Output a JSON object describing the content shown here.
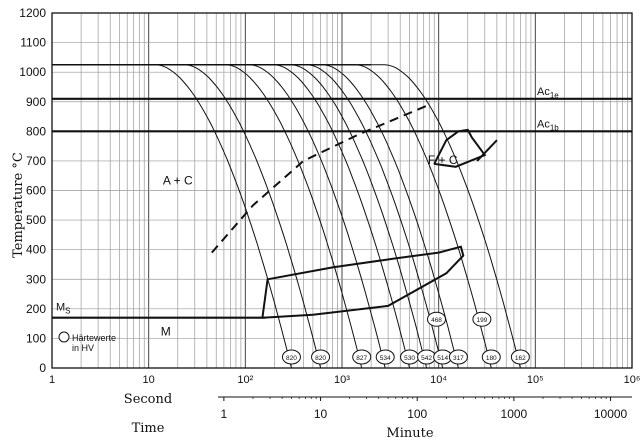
{
  "chart_data": {
    "type": "line",
    "title": "",
    "ylabel": "Temperature °C",
    "xlabel_seconds": "Second",
    "xlabel_minutes": "Minute",
    "time_label": "Time",
    "x_scale": "log",
    "x_seconds_range": [
      1,
      1000000
    ],
    "ylim": [
      0,
      1200
    ],
    "y_ticks": [
      "0",
      "100",
      "200",
      "300",
      "400",
      "500",
      "600",
      "700",
      "800",
      "900",
      "1000",
      "1100",
      "1200"
    ],
    "x_second_ticks": [
      {
        "value": 1,
        "label": "1"
      },
      {
        "value": 10,
        "label": "10"
      },
      {
        "value": 100,
        "label": "10²"
      },
      {
        "value": 1000,
        "label": "10³"
      },
      {
        "value": 10000,
        "label": "10⁴"
      },
      {
        "value": 100000,
        "label": "10⁵"
      },
      {
        "value": 1000000,
        "label": "10⁶"
      }
    ],
    "x_minute_ticks": [
      {
        "minutes": 1,
        "label": "1"
      },
      {
        "minutes": 10,
        "label": "10"
      },
      {
        "minutes": 100,
        "label": "100"
      },
      {
        "minutes": 1000,
        "label": "1000"
      },
      {
        "minutes": 10000,
        "label": "10000"
      }
    ],
    "grid": true,
    "lines": [
      {
        "name": "Ac1e",
        "base": "Ac",
        "sub": "1e",
        "temperature": 910
      },
      {
        "name": "Ac1b",
        "base": "Ac",
        "sub": "1b",
        "temperature": 800
      },
      {
        "name": "Ms",
        "base": "M",
        "sub": "S",
        "temperature": 170
      }
    ],
    "region_labels": [
      {
        "text": "A + C",
        "x": 20,
        "y": 620
      },
      {
        "text": "F + C",
        "x": 11000,
        "y": 690
      },
      {
        "text": "M",
        "x": 15,
        "y": 110
      }
    ],
    "legend_text": [
      "Härtewerte",
      "in HV"
    ],
    "cooling_curves": [
      {
        "end_x": 300,
        "hv": "820"
      },
      {
        "end_x": 600,
        "hv": "820"
      },
      {
        "end_x": 1600,
        "hv": "827"
      },
      {
        "end_x": 2800,
        "hv": "534"
      },
      {
        "end_x": 5000,
        "hv": "530"
      },
      {
        "end_x": 7500,
        "hv": "542"
      },
      {
        "end_x": 11000,
        "hv": "514"
      },
      {
        "end_x": 16000,
        "hv": "317"
      },
      {
        "end_x": 35000,
        "hv": "180"
      },
      {
        "end_x": 70000,
        "hv": "162"
      }
    ],
    "extra_hv": [
      {
        "x": 9500,
        "y": 165,
        "hv": "468"
      },
      {
        "x": 28000,
        "y": 165,
        "hv": "199"
      }
    ],
    "bainite_start_boundary": [
      [
        45,
        390
      ],
      [
        120,
        550
      ],
      [
        400,
        700
      ],
      [
        1500,
        790
      ],
      [
        8000,
        890
      ]
    ],
    "transformation_curves": [
      {
        "name": "bainite-region",
        "points": [
          [
            150,
            170
          ],
          [
            170,
            300
          ],
          [
            800,
            340
          ],
          [
            3500,
            370
          ],
          [
            10000,
            390
          ],
          [
            17000,
            410
          ],
          [
            18000,
            380
          ],
          [
            12000,
            320
          ],
          [
            3000,
            210
          ],
          [
            500,
            180
          ],
          [
            150,
            170
          ]
        ]
      },
      {
        "name": "ferrite-pearlite-region",
        "points": [
          [
            9000,
            690
          ],
          [
            12000,
            770
          ],
          [
            16000,
            800
          ],
          [
            20000,
            805
          ],
          [
            22000,
            780
          ],
          [
            30000,
            720
          ],
          [
            15000,
            680
          ],
          [
            9000,
            690
          ]
        ]
      },
      {
        "name": "ferrite-start",
        "points": [
          [
            25000,
            700
          ],
          [
            40000,
            770
          ]
        ]
      }
    ]
  }
}
